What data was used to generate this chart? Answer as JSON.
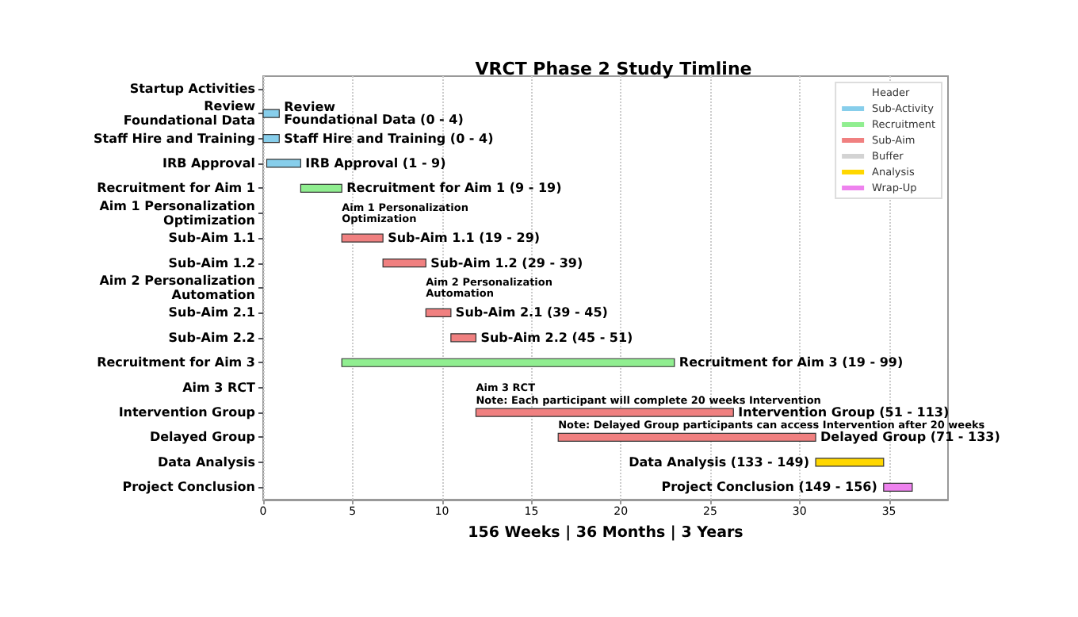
{
  "chart_data": {
    "type": "bar",
    "orientation": "horizontal",
    "title": "VRCT Phase 2 Study Timline",
    "xlabel": "156 Weeks | 36 Months | 3 Years",
    "categories": [
      "Startup Activities",
      "Review\nFoundational Data",
      "Staff Hire and Training",
      "IRB Approval",
      "Recruitment for Aim 1",
      "Aim 1 Personalization\nOptimization",
      "Sub-Aim 1.1",
      "Sub-Aim 1.2",
      "Aim 2 Personalization\nAutomation",
      "Sub-Aim 2.1",
      "Sub-Aim 2.2",
      "Recruitment for Aim 3",
      "Aim 3 RCT",
      "Intervention Group",
      "Delayed Group",
      "Data Analysis",
      "Project Conclusion"
    ],
    "series": [
      {
        "name": "Header",
        "values": [
          null,
          null,
          null,
          null,
          null,
          null,
          null,
          null,
          null,
          null,
          null,
          null,
          null,
          null,
          null,
          null,
          null
        ]
      },
      {
        "name": "Sub-Activity",
        "color": "#87ceeb",
        "base": [
          null,
          0,
          0,
          0.2,
          null,
          null,
          null,
          null,
          null,
          null,
          null,
          null,
          null,
          null,
          null,
          null,
          null
        ],
        "values": [
          null,
          0.9,
          0.9,
          1.9,
          null,
          null,
          null,
          null,
          null,
          null,
          null,
          null,
          null,
          null,
          null,
          null,
          null
        ],
        "value_labels": [
          null,
          "Review\nFoundational Data (0 - 4)",
          "Staff Hire and Training (0 - 4)",
          "IRB Approval (1 - 9)",
          null,
          null,
          null,
          null,
          null,
          null,
          null,
          null,
          null,
          null,
          null,
          null,
          null
        ]
      },
      {
        "name": "Recruitment",
        "color": "#90ee90",
        "base": [
          null,
          null,
          null,
          null,
          2.1,
          null,
          null,
          null,
          null,
          null,
          null,
          4.4,
          null,
          null,
          null,
          null,
          null
        ],
        "values": [
          null,
          null,
          null,
          null,
          2.3,
          null,
          null,
          null,
          null,
          null,
          null,
          18.6,
          null,
          null,
          null,
          null,
          null
        ],
        "value_labels": [
          null,
          null,
          null,
          null,
          "Recruitment for Aim 1 (9 - 19)",
          null,
          null,
          null,
          null,
          null,
          null,
          "Recruitment for Aim 3 (19 - 99)",
          null,
          null,
          null,
          null,
          null
        ]
      },
      {
        "name": "Sub-Aim",
        "color": "#f08080",
        "base": [
          null,
          null,
          null,
          null,
          null,
          null,
          4.4,
          6.7,
          null,
          9.1,
          10.5,
          null,
          null,
          11.9,
          16.5,
          null,
          null
        ],
        "values": [
          null,
          null,
          null,
          null,
          null,
          null,
          2.3,
          2.4,
          null,
          1.4,
          1.4,
          null,
          null,
          14.4,
          14.4,
          null,
          null
        ],
        "value_labels": [
          null,
          null,
          null,
          null,
          null,
          null,
          "Sub-Aim 1.1 (19 - 29)",
          "Sub-Aim 1.2 (29 - 39)",
          null,
          "Sub-Aim 2.1 (39 - 45)",
          "Sub-Aim 2.2 (45 - 51)",
          null,
          null,
          "Intervention Group (51 - 113)",
          "Delayed Group (71 - 133)",
          null,
          null
        ]
      },
      {
        "name": "Buffer",
        "color": "#d3d3d3",
        "values": [
          null,
          null,
          null,
          null,
          null,
          null,
          null,
          null,
          null,
          null,
          null,
          null,
          null,
          null,
          null,
          null,
          null
        ]
      },
      {
        "name": "Analysis",
        "color": "#ffd700",
        "base": [
          null,
          null,
          null,
          null,
          null,
          null,
          null,
          null,
          null,
          null,
          null,
          null,
          null,
          null,
          null,
          30.9,
          null
        ],
        "values": [
          null,
          null,
          null,
          null,
          null,
          null,
          null,
          null,
          null,
          null,
          null,
          null,
          null,
          null,
          null,
          3.8,
          null
        ],
        "value_labels": [
          null,
          null,
          null,
          null,
          null,
          null,
          null,
          null,
          null,
          null,
          null,
          null,
          null,
          null,
          null,
          "Data Analysis (133 - 149)",
          null
        ]
      },
      {
        "name": "Wrap-Up",
        "color": "#ee82ee",
        "base": [
          null,
          null,
          null,
          null,
          null,
          null,
          null,
          null,
          null,
          null,
          null,
          null,
          null,
          null,
          null,
          null,
          34.7
        ],
        "values": [
          null,
          null,
          null,
          null,
          null,
          null,
          null,
          null,
          null,
          null,
          null,
          null,
          null,
          null,
          null,
          null,
          1.6
        ],
        "value_labels": [
          null,
          null,
          null,
          null,
          null,
          null,
          null,
          null,
          null,
          null,
          null,
          null,
          null,
          null,
          null,
          null,
          "Project Conclusion (149 - 156)"
        ]
      }
    ],
    "annotations": [
      "Aim 1 Personalization\nOptimization",
      "Aim 2 Personalization\nAutomation",
      "Aim 3 RCT",
      {
        "text": "Note: Each participant will complete 20 weeks Intervention",
        "x": 11.9,
        "y": "Intervention Group"
      },
      {
        "text": "Note: Delayed Group participants can access Intervention after 20 weeks",
        "x": 16.5,
        "y": "Delayed Group"
      }
    ],
    "xlim": [
      0,
      38.3
    ],
    "xticks": [
      0,
      5,
      10,
      15,
      20,
      25,
      30,
      35
    ],
    "grid": "x",
    "legend": "top right"
  }
}
